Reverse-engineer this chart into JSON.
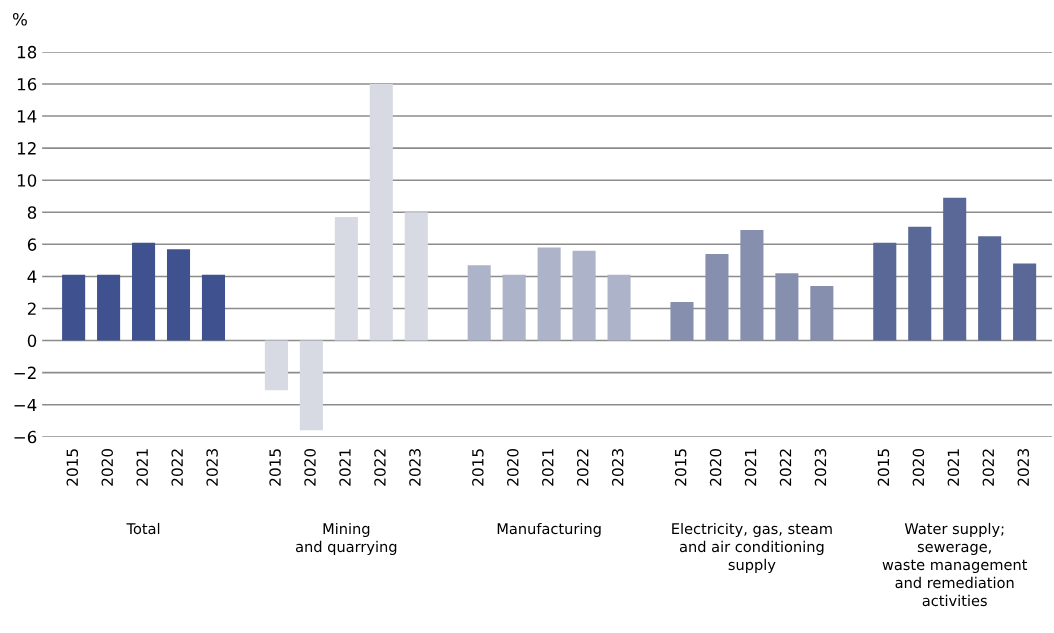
{
  "chart_data": {
    "type": "bar",
    "ylabel": "%",
    "categories": [
      "2015",
      "2020",
      "2021",
      "2022",
      "2023",
      "2015",
      "2020",
      "2021",
      "2022",
      "2023",
      "2015",
      "2020",
      "2021",
      "2022",
      "2023",
      "2015",
      "2020",
      "2021",
      "2022",
      "2023",
      "2015",
      "2020",
      "2021",
      "2022",
      "2023"
    ],
    "series": [
      {
        "color": "#3f528f",
        "values": [
          4.1,
          4.1,
          6.1,
          5.7,
          4.1,
          null,
          null,
          null,
          null,
          null,
          null,
          null,
          null,
          null,
          null,
          null,
          null,
          null,
          null,
          null,
          null,
          null,
          null,
          null,
          null
        ]
      },
      {
        "color": "#d7dae3",
        "values": [
          null,
          null,
          null,
          null,
          null,
          -3.1,
          -5.6,
          7.7,
          16.0,
          8.0,
          null,
          null,
          null,
          null,
          null,
          null,
          null,
          null,
          null,
          null,
          null,
          null,
          null,
          null,
          null
        ]
      },
      {
        "color": "#adb3c8",
        "values": [
          null,
          null,
          null,
          null,
          null,
          null,
          null,
          null,
          null,
          null,
          4.7,
          4.1,
          5.8,
          5.6,
          4.1,
          null,
          null,
          null,
          null,
          null,
          null,
          null,
          null,
          null,
          null
        ]
      },
      {
        "color": "#8690ae",
        "values": [
          null,
          null,
          null,
          null,
          null,
          null,
          null,
          null,
          null,
          null,
          null,
          null,
          null,
          null,
          null,
          2.4,
          5.4,
          6.9,
          4.2,
          3.4,
          null,
          null,
          null,
          null,
          null
        ]
      },
      {
        "color": "#5a6897",
        "values": [
          null,
          null,
          null,
          null,
          null,
          null,
          null,
          null,
          null,
          null,
          null,
          null,
          null,
          null,
          null,
          null,
          null,
          null,
          null,
          null,
          6.1,
          7.1,
          8.9,
          6.5,
          4.8
        ]
      }
    ],
    "annotations": [
      "Total",
      "Mining\nand quarrying",
      "Manufacturing",
      "Electricity, gas, steam\nand air conditioning\nsupply",
      "Water supply;\nsewerage,\nwaste management\nand remediation\nactivities"
    ],
    "ylim": [
      -6,
      18
    ],
    "yticks": [
      {
        "value": -6,
        "label": "−6"
      },
      {
        "value": -4,
        "label": "−4"
      },
      {
        "value": -2,
        "label": "−2"
      },
      0,
      2,
      4,
      6,
      8,
      10,
      12,
      14,
      16,
      18
    ],
    "grid": "y",
    "legend": false
  }
}
